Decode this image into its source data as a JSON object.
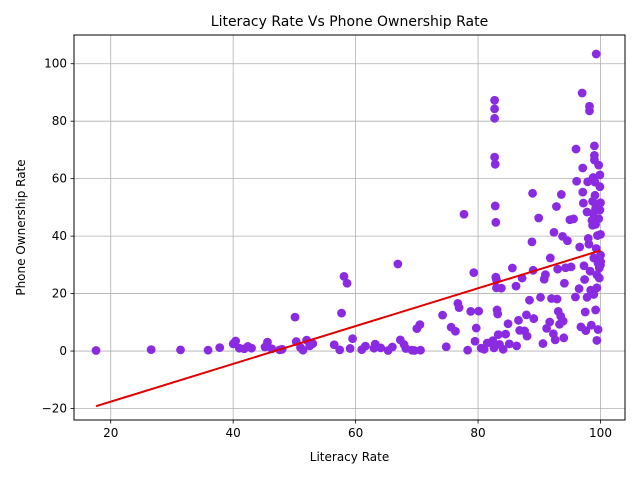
{
  "chart_data": {
    "type": "scatter",
    "title": "Literacy Rate Vs Phone Ownership Rate",
    "xlabel": "Literacy Rate",
    "ylabel": "Phone Ownership Rate",
    "xlim": [
      14,
      104
    ],
    "ylim": [
      -24,
      110
    ],
    "xticks": [
      20,
      40,
      60,
      80,
      100
    ],
    "yticks": [
      -20,
      0,
      20,
      40,
      60,
      80,
      100
    ],
    "grid": true,
    "legend": "none",
    "colors": {
      "points": "#8a2be2",
      "fit_line": "#e00000"
    },
    "fit_line": {
      "x": [
        17.6,
        100
      ],
      "y": [
        -19.2,
        35.0
      ]
    },
    "points": [
      [
        17.6,
        0.2
      ],
      [
        26.6,
        0.5
      ],
      [
        31.4,
        0.4
      ],
      [
        35.9,
        0.3
      ],
      [
        37.8,
        1.2
      ],
      [
        40.0,
        2.5
      ],
      [
        40.4,
        3.5
      ],
      [
        41.0,
        1.0
      ],
      [
        41.8,
        0.8
      ],
      [
        42.4,
        1.6
      ],
      [
        43.0,
        1.0
      ],
      [
        45.2,
        1.4
      ],
      [
        45.6,
        3.1
      ],
      [
        46.3,
        0.8
      ],
      [
        47.6,
        0.4
      ],
      [
        48.0,
        0.6
      ],
      [
        50.1,
        11.8
      ],
      [
        50.3,
        3.3
      ],
      [
        51.0,
        1.2
      ],
      [
        51.4,
        0.3
      ],
      [
        52.0,
        3.8
      ],
      [
        52.5,
        1.8
      ],
      [
        53.0,
        2.6
      ],
      [
        56.5,
        2.2
      ],
      [
        57.4,
        0.4
      ],
      [
        57.7,
        13.2
      ],
      [
        58.1,
        26.0
      ],
      [
        58.6,
        23.6
      ],
      [
        59.1,
        0.9
      ],
      [
        59.5,
        4.3
      ],
      [
        61.0,
        0.5
      ],
      [
        61.6,
        1.7
      ],
      [
        63.0,
        1.0
      ],
      [
        63.2,
        2.4
      ],
      [
        64.1,
        1.1
      ],
      [
        65.3,
        0.2
      ],
      [
        66.0,
        1.4
      ],
      [
        66.9,
        30.3
      ],
      [
        67.3,
        3.9
      ],
      [
        67.9,
        2.3
      ],
      [
        68.2,
        0.9
      ],
      [
        69.2,
        0.3
      ],
      [
        69.6,
        0.2
      ],
      [
        70.0,
        7.8
      ],
      [
        70.5,
        9.2
      ],
      [
        70.6,
        0.3
      ],
      [
        74.2,
        12.5
      ],
      [
        74.8,
        1.5
      ],
      [
        75.6,
        8.3
      ],
      [
        76.3,
        6.9
      ],
      [
        76.7,
        16.6
      ],
      [
        76.9,
        15.1
      ],
      [
        77.7,
        47.6
      ],
      [
        78.3,
        0.3
      ],
      [
        78.8,
        13.8
      ],
      [
        79.3,
        27.3
      ],
      [
        79.5,
        3.4
      ],
      [
        79.7,
        8.0
      ],
      [
        80.1,
        13.9
      ],
      [
        80.5,
        1.0
      ],
      [
        81.0,
        0.6
      ],
      [
        81.5,
        2.8
      ],
      [
        82.4,
        3.6
      ],
      [
        82.6,
        1.1
      ],
      [
        82.7,
        87.3
      ],
      [
        82.7,
        84.3
      ],
      [
        82.7,
        81.0
      ],
      [
        82.7,
        67.5
      ],
      [
        82.8,
        65.0
      ],
      [
        82.8,
        50.5
      ],
      [
        82.9,
        44.8
      ],
      [
        82.9,
        25.7
      ],
      [
        83.0,
        24.8
      ],
      [
        83.0,
        22.0
      ],
      [
        83.1,
        14.3
      ],
      [
        83.2,
        12.9
      ],
      [
        83.3,
        5.7
      ],
      [
        83.5,
        2.3
      ],
      [
        83.8,
        21.9
      ],
      [
        84.1,
        0.6
      ],
      [
        84.5,
        5.9
      ],
      [
        84.9,
        9.5
      ],
      [
        85.1,
        2.5
      ],
      [
        85.6,
        28.9
      ],
      [
        86.2,
        22.6
      ],
      [
        86.3,
        1.8
      ],
      [
        86.6,
        10.7
      ],
      [
        86.8,
        7.2
      ],
      [
        87.2,
        25.4
      ],
      [
        87.6,
        7.0
      ],
      [
        87.9,
        12.6
      ],
      [
        88.0,
        5.2
      ],
      [
        88.4,
        17.7
      ],
      [
        88.8,
        38.0
      ],
      [
        88.9,
        54.9
      ],
      [
        89.0,
        28.1
      ],
      [
        89.1,
        11.3
      ],
      [
        89.9,
        46.3
      ],
      [
        90.2,
        18.7
      ],
      [
        90.6,
        2.6
      ],
      [
        90.8,
        25.0
      ],
      [
        91.0,
        26.6
      ],
      [
        91.2,
        7.9
      ],
      [
        91.7,
        10.1
      ],
      [
        91.8,
        32.4
      ],
      [
        92.0,
        18.3
      ],
      [
        92.3,
        6.0
      ],
      [
        92.4,
        41.3
      ],
      [
        92.6,
        3.9
      ],
      [
        92.8,
        50.3
      ],
      [
        92.9,
        18.1
      ],
      [
        93.0,
        28.5
      ],
      [
        93.1,
        13.8
      ],
      [
        93.3,
        9.3
      ],
      [
        93.5,
        12.1
      ],
      [
        93.6,
        54.5
      ],
      [
        93.8,
        39.9
      ],
      [
        93.9,
        10.4
      ],
      [
        94.0,
        4.6
      ],
      [
        94.1,
        23.6
      ],
      [
        94.3,
        29.0
      ],
      [
        94.6,
        38.4
      ],
      [
        95.0,
        45.7
      ],
      [
        95.2,
        29.3
      ],
      [
        95.6,
        46.0
      ],
      [
        95.9,
        18.8
      ],
      [
        96.0,
        70.3
      ],
      [
        96.1,
        59.1
      ],
      [
        96.5,
        21.7
      ],
      [
        96.6,
        36.2
      ],
      [
        96.8,
        8.4
      ],
      [
        97.0,
        89.8
      ],
      [
        97.1,
        63.7
      ],
      [
        97.1,
        55.3
      ],
      [
        97.2,
        51.5
      ],
      [
        97.3,
        29.7
      ],
      [
        97.4,
        24.9
      ],
      [
        97.5,
        13.6
      ],
      [
        97.6,
        7.1
      ],
      [
        97.8,
        48.4
      ],
      [
        97.8,
        18.7
      ],
      [
        97.9,
        58.9
      ],
      [
        98.0,
        39.2
      ],
      [
        98.1,
        37.2
      ],
      [
        98.2,
        85.2
      ],
      [
        98.2,
        83.6
      ],
      [
        98.3,
        27.8
      ],
      [
        98.4,
        21.2
      ],
      [
        98.5,
        9.0
      ],
      [
        98.6,
        45.5
      ],
      [
        98.7,
        52.1
      ],
      [
        98.7,
        43.8
      ],
      [
        98.8,
        60.4
      ],
      [
        98.8,
        47.9
      ],
      [
        98.9,
        32.4
      ],
      [
        98.9,
        19.7
      ],
      [
        99.0,
        71.4
      ],
      [
        99.0,
        68.1
      ],
      [
        99.0,
        66.5
      ],
      [
        99.1,
        58.8
      ],
      [
        99.1,
        54.2
      ],
      [
        99.2,
        49.7
      ],
      [
        99.2,
        44.1
      ],
      [
        99.2,
        14.3
      ],
      [
        99.3,
        103.4
      ],
      [
        99.3,
        35.7
      ],
      [
        99.4,
        26.5
      ],
      [
        99.4,
        22.0
      ],
      [
        99.4,
        3.7
      ],
      [
        99.5,
        51.0
      ],
      [
        99.5,
        40.2
      ],
      [
        99.6,
        30.6
      ],
      [
        99.6,
        7.5
      ],
      [
        99.7,
        64.7
      ],
      [
        99.7,
        46.1
      ],
      [
        99.8,
        28.9
      ],
      [
        99.8,
        25.4
      ],
      [
        99.9,
        61.3
      ],
      [
        99.9,
        57.2
      ],
      [
        99.9,
        49.1
      ],
      [
        100.0,
        51.6
      ],
      [
        100.0,
        40.6
      ],
      [
        100.0,
        33.4
      ],
      [
        100.0,
        31.2
      ],
      [
        100.0,
        31.0
      ],
      [
        100.0,
        30.0
      ]
    ]
  }
}
